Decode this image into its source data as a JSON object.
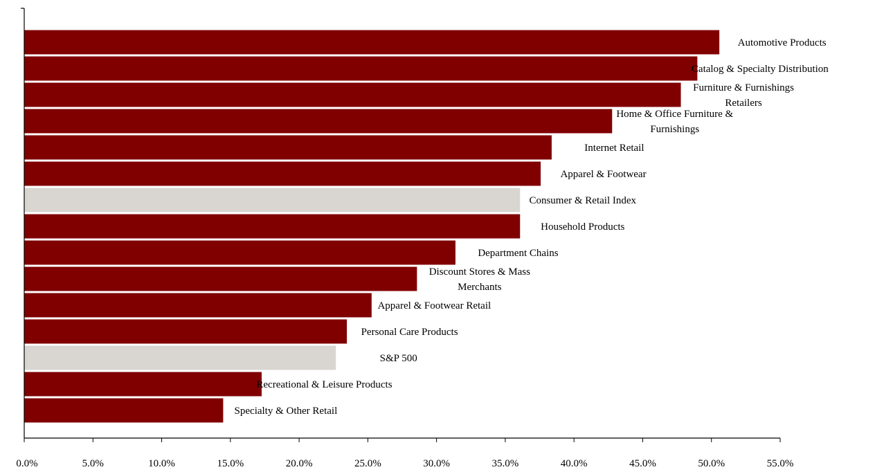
{
  "chart_data": {
    "type": "bar",
    "orientation": "horizontal",
    "categories": [
      "Automotive Products",
      "Catalog & Specialty Distribution",
      "Furniture & Furnishings Retailers",
      "Home & Office Furniture & Furnishings",
      "Internet Retail",
      "Apparel & Footwear",
      "Consumer & Retail Index",
      "Household Products",
      "Department Chains",
      "Discount Stores & Mass Merchants",
      "Apparel & Footwear Retail",
      "Personal Care Products",
      "S&P 500",
      "Recreational & Leisure Products",
      "Specialty & Other Retail"
    ],
    "label_lines": [
      [
        "Automotive Products"
      ],
      [
        "Catalog & Specialty Distribution"
      ],
      [
        "Furniture & Furnishings",
        "Retailers"
      ],
      [
        "Home & Office Furniture &",
        "Furnishings"
      ],
      [
        "Internet Retail"
      ],
      [
        "Apparel & Footwear"
      ],
      [
        "Consumer & Retail Index"
      ],
      [
        "Household Products"
      ],
      [
        "Department Chains"
      ],
      [
        "Discount Stores & Mass",
        "Merchants"
      ],
      [
        "Apparel & Footwear Retail"
      ],
      [
        "Personal Care Products"
      ],
      [
        "S&P 500"
      ],
      [
        "Recreational & Leisure Products"
      ],
      [
        "Specialty & Other Retail"
      ]
    ],
    "values": [
      50.6,
      49.0,
      47.8,
      42.8,
      38.4,
      37.6,
      36.1,
      36.1,
      31.4,
      28.6,
      25.3,
      23.5,
      22.7,
      17.3,
      14.5
    ],
    "highlighted": [
      false,
      false,
      false,
      false,
      false,
      false,
      true,
      false,
      false,
      false,
      false,
      false,
      true,
      false,
      false
    ],
    "x_ticks": [
      "0.0%",
      "5.0%",
      "10.0%",
      "15.0%",
      "20.0%",
      "25.0%",
      "30.0%",
      "35.0%",
      "40.0%",
      "45.0%",
      "50.0%",
      "55.0%"
    ],
    "xlim": [
      0,
      55
    ],
    "grid": false,
    "colors": {
      "bar": "#800000",
      "highlight": "#d9d6d1",
      "axis": "#000000",
      "text": "#000000"
    }
  }
}
